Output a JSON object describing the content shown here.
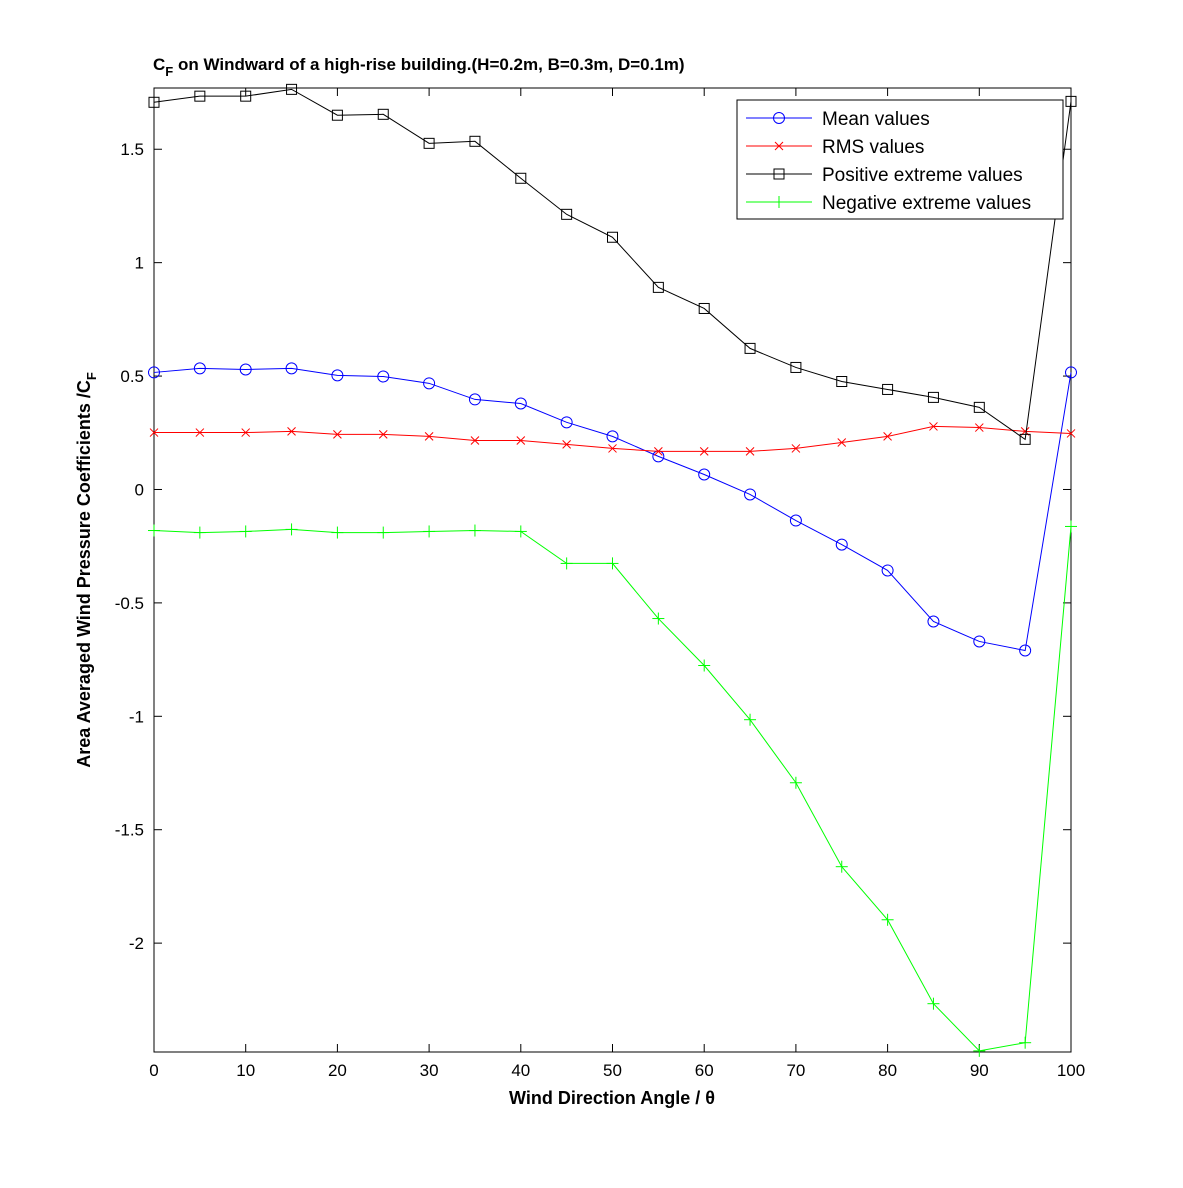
{
  "chart_data": {
    "type": "line",
    "title": "C_F on Windward of a high-rise building.(H=0.2m, B=0.3m, D=0.1m)",
    "title_main": "C",
    "title_sub": "F",
    "title_rest": " on Windward of a high-rise building.(H=0.2m, B=0.3m, D=0.1m)",
    "xlabel": "Wind Direction Angle  / θ",
    "ylabel_main": "Area Averaged Wind Pressure Coefficients /C",
    "ylabel_sub": "F",
    "xlim": [
      0,
      100
    ],
    "ylim": [
      -2.48,
      1.77
    ],
    "xticks": [
      0,
      10,
      20,
      30,
      40,
      50,
      60,
      70,
      80,
      90,
      100
    ],
    "yticks": [
      -2,
      -1.5,
      -1,
      -0.5,
      0,
      0.5,
      1,
      1.5
    ],
    "grid": false,
    "legend_position": "top-right",
    "x": [
      0,
      5,
      10,
      15,
      20,
      25,
      30,
      35,
      40,
      45,
      50,
      55,
      60,
      65,
      70,
      75,
      80,
      85,
      90,
      95,
      100
    ],
    "series": [
      {
        "name": "Mean values",
        "color": "#0000ff",
        "marker": "circle",
        "values": [
          0.516,
          0.534,
          0.529,
          0.534,
          0.503,
          0.498,
          0.468,
          0.397,
          0.379,
          0.296,
          0.234,
          0.146,
          0.066,
          -0.022,
          -0.137,
          -0.243,
          -0.357,
          -0.582,
          -0.67,
          -0.71,
          0.516
        ]
      },
      {
        "name": "RMS values",
        "color": "#ff0000",
        "marker": "x",
        "values": [
          0.251,
          0.251,
          0.251,
          0.256,
          0.243,
          0.243,
          0.234,
          0.216,
          0.216,
          0.199,
          0.181,
          0.168,
          0.168,
          0.168,
          0.181,
          0.207,
          0.234,
          0.278,
          0.273,
          0.256,
          0.247
        ]
      },
      {
        "name": "Positive extreme values",
        "color": "#000000",
        "marker": "square",
        "values": [
          1.707,
          1.734,
          1.734,
          1.764,
          1.65,
          1.654,
          1.526,
          1.535,
          1.372,
          1.213,
          1.112,
          0.891,
          0.798,
          0.622,
          0.538,
          0.476,
          0.441,
          0.406,
          0.362,
          0.221,
          1.711
        ]
      },
      {
        "name": "Negative extreme values",
        "color": "#00ff00",
        "marker": "plus",
        "values": [
          -0.181,
          -0.19,
          -0.185,
          -0.176,
          -0.19,
          -0.19,
          -0.185,
          -0.181,
          -0.185,
          -0.326,
          -0.326,
          -0.569,
          -0.776,
          -1.015,
          -1.293,
          -1.663,
          -1.897,
          -2.267,
          -2.475,
          -2.439,
          -0.163
        ]
      }
    ]
  }
}
